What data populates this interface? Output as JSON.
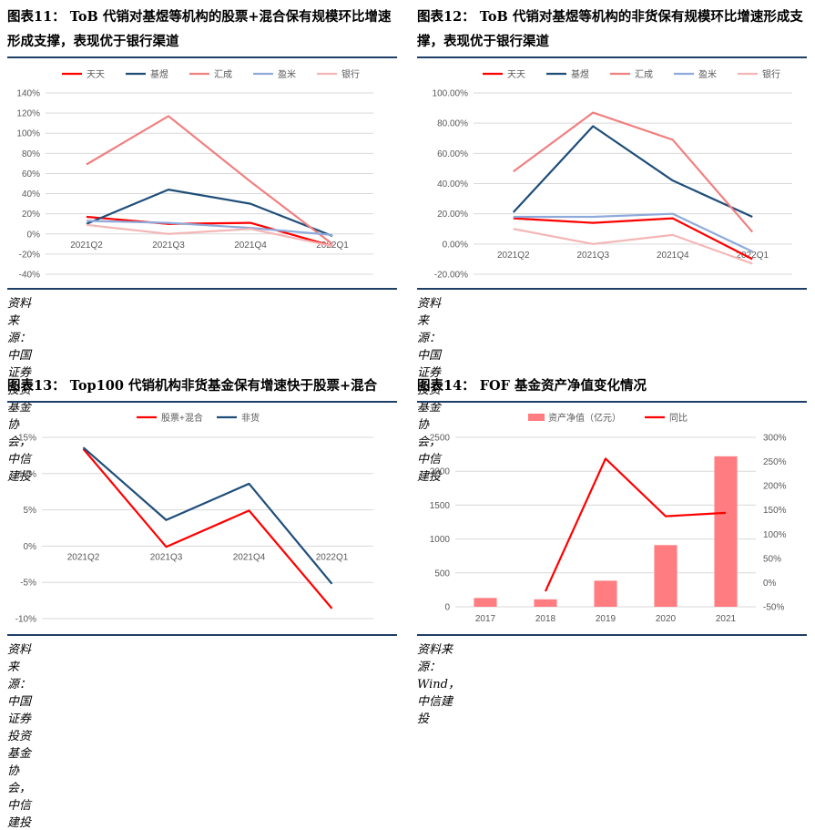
{
  "panels": [
    {
      "title": "图表11： ToB 代销对基煜等机构的股票+混合保有规模环比增速形成支撑，表现优于银行渠道",
      "source": "资料来源：中国证券投资基金协会，中信建投"
    },
    {
      "title": "图表12： ToB 代销对基煜等机构的非货保有规模环比增速形成支撑，表现优于银行渠道",
      "source": "资料来源：中国证券投资基金协会，中信建投"
    },
    {
      "title": "图表13： Top100 代销机构非货基金保有增速快于股票+混合",
      "source": "资料来源：中国证券投资基金协会，中信建投"
    },
    {
      "title": "图表14： FOF 基金资产净值变化情况",
      "source": "资料来源：Wind，中信建投"
    }
  ],
  "chart_data": [
    {
      "type": "line",
      "categories": [
        "2021Q2",
        "2021Q3",
        "2021Q4",
        "2022Q1"
      ],
      "y_ticks": [
        "140%",
        "120%",
        "100%",
        "80%",
        "60%",
        "40%",
        "20%",
        "0%",
        "-20%",
        "-40%"
      ],
      "ylim": [
        -40,
        140
      ],
      "legend_position": "top",
      "grid": true,
      "series": [
        {
          "name": "天天",
          "color": "#ff0000",
          "values": [
            17,
            10,
            11,
            -12
          ]
        },
        {
          "name": "基煜",
          "color": "#1f4e79",
          "values": [
            10,
            44,
            30,
            -2
          ]
        },
        {
          "name": "汇成",
          "color": "#f08080",
          "values": [
            69,
            117,
            52,
            -10
          ]
        },
        {
          "name": "盈米",
          "color": "#8eaadb",
          "values": [
            13,
            11,
            6,
            -1
          ]
        },
        {
          "name": "银行",
          "color": "#f4b6b6",
          "values": [
            9,
            0,
            5,
            -12
          ]
        }
      ]
    },
    {
      "type": "line",
      "categories": [
        "2021Q2",
        "2021Q3",
        "2021Q4",
        "2022Q1"
      ],
      "y_ticks": [
        "100.00%",
        "80.00%",
        "60.00%",
        "40.00%",
        "20.00%",
        "0.00%",
        "-20.00%"
      ],
      "ylim": [
        -20,
        100
      ],
      "legend_position": "top",
      "grid": true,
      "series": [
        {
          "name": "天天",
          "color": "#ff0000",
          "values": [
            17,
            14,
            17,
            -10
          ]
        },
        {
          "name": "基煜",
          "color": "#1f4e79",
          "values": [
            21,
            78,
            42,
            18
          ]
        },
        {
          "name": "汇成",
          "color": "#f08080",
          "values": [
            48,
            87,
            69,
            8
          ]
        },
        {
          "name": "盈米",
          "color": "#8eaadb",
          "values": [
            18,
            18,
            20,
            -5
          ]
        },
        {
          "name": "银行",
          "color": "#f4b6b6",
          "values": [
            10,
            0,
            6,
            -13
          ]
        }
      ]
    },
    {
      "type": "line",
      "categories": [
        "2021Q2",
        "2021Q3",
        "2021Q4",
        "2022Q1"
      ],
      "y_ticks": [
        "15%",
        "10%",
        "5%",
        "0%",
        "-5%",
        "-10%"
      ],
      "ylim": [
        -10,
        15
      ],
      "legend_position": "top",
      "grid": true,
      "series": [
        {
          "name": "股票+混合",
          "color": "#ff0000",
          "values": [
            13.4,
            -0.1,
            4.9,
            -8.6
          ]
        },
        {
          "name": "非货",
          "color": "#1f4e79",
          "values": [
            13.6,
            3.6,
            8.6,
            -5.2
          ]
        }
      ]
    },
    {
      "type": "bar",
      "categories": [
        "2017",
        "2018",
        "2019",
        "2020",
        "2021"
      ],
      "y_ticks": [
        "2500",
        "2000",
        "1500",
        "1000",
        "500",
        "0"
      ],
      "y2_ticks": [
        "300%",
        "250%",
        "200%",
        "150%",
        "100%",
        "50%",
        "0%",
        "-50%"
      ],
      "ylim": [
        0,
        2500
      ],
      "y2lim": [
        -50,
        300
      ],
      "legend_position": "top",
      "grid": true,
      "series": [
        {
          "name": "资产净值（亿元）",
          "kind": "bar",
          "axis": "left",
          "color": "#ff7c80",
          "values": [
            130,
            110,
            385,
            910,
            2220
          ]
        },
        {
          "name": "同比",
          "kind": "line",
          "axis": "right",
          "color": "#ff0000",
          "values": [
            null,
            -18,
            256,
            137,
            144
          ]
        }
      ]
    }
  ]
}
